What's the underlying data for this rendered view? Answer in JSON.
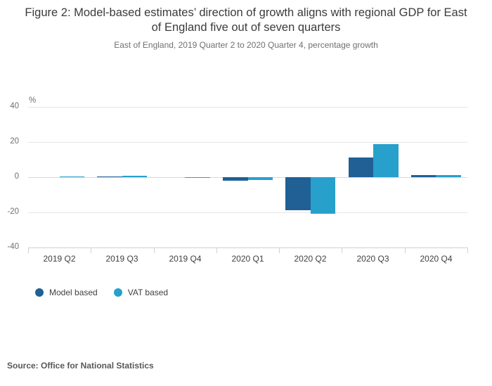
{
  "figure": {
    "title": "Figure 2: Model-based estimates’ direction of growth aligns with regional GDP for East of England five out of seven quarters",
    "subtitle": "East of England, 2019 Quarter 2 to 2020 Quarter 4, percentage growth",
    "source_label": "Source: Office for National Statistics"
  },
  "chart_data": {
    "type": "bar",
    "title": "Figure 2: Model-based estimates’ direction of growth aligns with regional GDP for East of England five out of seven quarters",
    "subtitle": "East of England, 2019 Quarter 2 to 2020 Quarter 4, percentage growth",
    "unit_label": "%",
    "categories": [
      "2019 Q2",
      "2019 Q3",
      "2019 Q4",
      "2020 Q1",
      "2020 Q2",
      "2020 Q3",
      "2020 Q4"
    ],
    "series": [
      {
        "name": "Model based",
        "color": "#206095",
        "values": [
          0.0,
          0.3,
          0.0,
          -2.0,
          -18.6,
          11.2,
          1.4
        ]
      },
      {
        "name": "VAT based",
        "color": "#27a0cc",
        "values": [
          0.4,
          0.7,
          -0.4,
          -1.7,
          -20.9,
          18.7,
          1.2
        ]
      }
    ],
    "xlabel": "",
    "ylabel": "%",
    "ylim": [
      -40,
      40
    ],
    "yticks": [
      40,
      20,
      0,
      -20,
      -40
    ],
    "grid": true,
    "legend_position": "bottom-left"
  }
}
